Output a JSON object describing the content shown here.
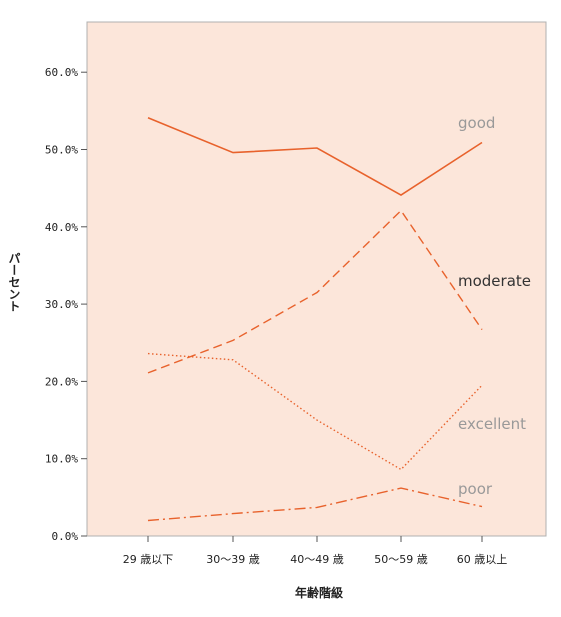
{
  "chart_data": {
    "type": "line",
    "title": "",
    "xlabel": "年齢階級",
    "ylabel": "パーセント",
    "categories": [
      "29 歳以下",
      "30〜39 歳",
      "40〜49 歳",
      "50〜59 歳",
      "60 歳以上"
    ],
    "yticks": [
      "0.0%",
      "10.0%",
      "20.0%",
      "30.0%",
      "40.0%",
      "50.0%",
      "60.0%"
    ],
    "ylim": [
      0,
      65
    ],
    "grid": false,
    "background": "#fce6da",
    "line_color": "#e8622c",
    "series": [
      {
        "name": "good",
        "values": [
          54.1,
          49.6,
          50.2,
          44.1,
          50.9
        ],
        "dash": "solid",
        "label_color": "#999999"
      },
      {
        "name": "moderate",
        "values": [
          21.1,
          25.3,
          31.5,
          42.1,
          26.7
        ],
        "dash": "dashed",
        "label_color": "#333333"
      },
      {
        "name": "excellent",
        "values": [
          23.6,
          22.8,
          15.0,
          8.6,
          19.5
        ],
        "dash": "dotted",
        "label_color": "#999999"
      },
      {
        "name": "poor",
        "values": [
          2.0,
          2.9,
          3.7,
          6.2,
          3.8
        ],
        "dash": "dashdot",
        "label_color": "#999999"
      }
    ]
  }
}
